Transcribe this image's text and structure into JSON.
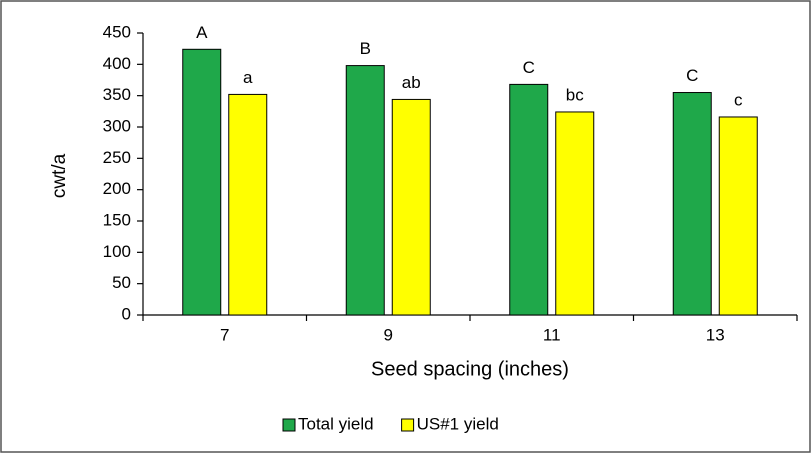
{
  "chart_data": {
    "type": "bar",
    "x_label": "Seed spacing (inches)",
    "y_label": "cwt/a",
    "categories": [
      "7",
      "9",
      "11",
      "13"
    ],
    "series": [
      {
        "name": "Total yield",
        "color": "#1fa84a",
        "values": [
          424,
          398,
          368,
          355
        ],
        "annotations": [
          "A",
          "B",
          "C",
          "C"
        ]
      },
      {
        "name": "US#1 yield",
        "color": "#ffff00",
        "values": [
          352,
          344,
          324,
          316
        ],
        "annotations": [
          "a",
          "ab",
          "bc",
          "c"
        ]
      }
    ],
    "ylim": [
      0,
      450
    ],
    "yticks": [
      0,
      50,
      100,
      150,
      200,
      250,
      300,
      350,
      400,
      450
    ],
    "legend": "bottom"
  }
}
